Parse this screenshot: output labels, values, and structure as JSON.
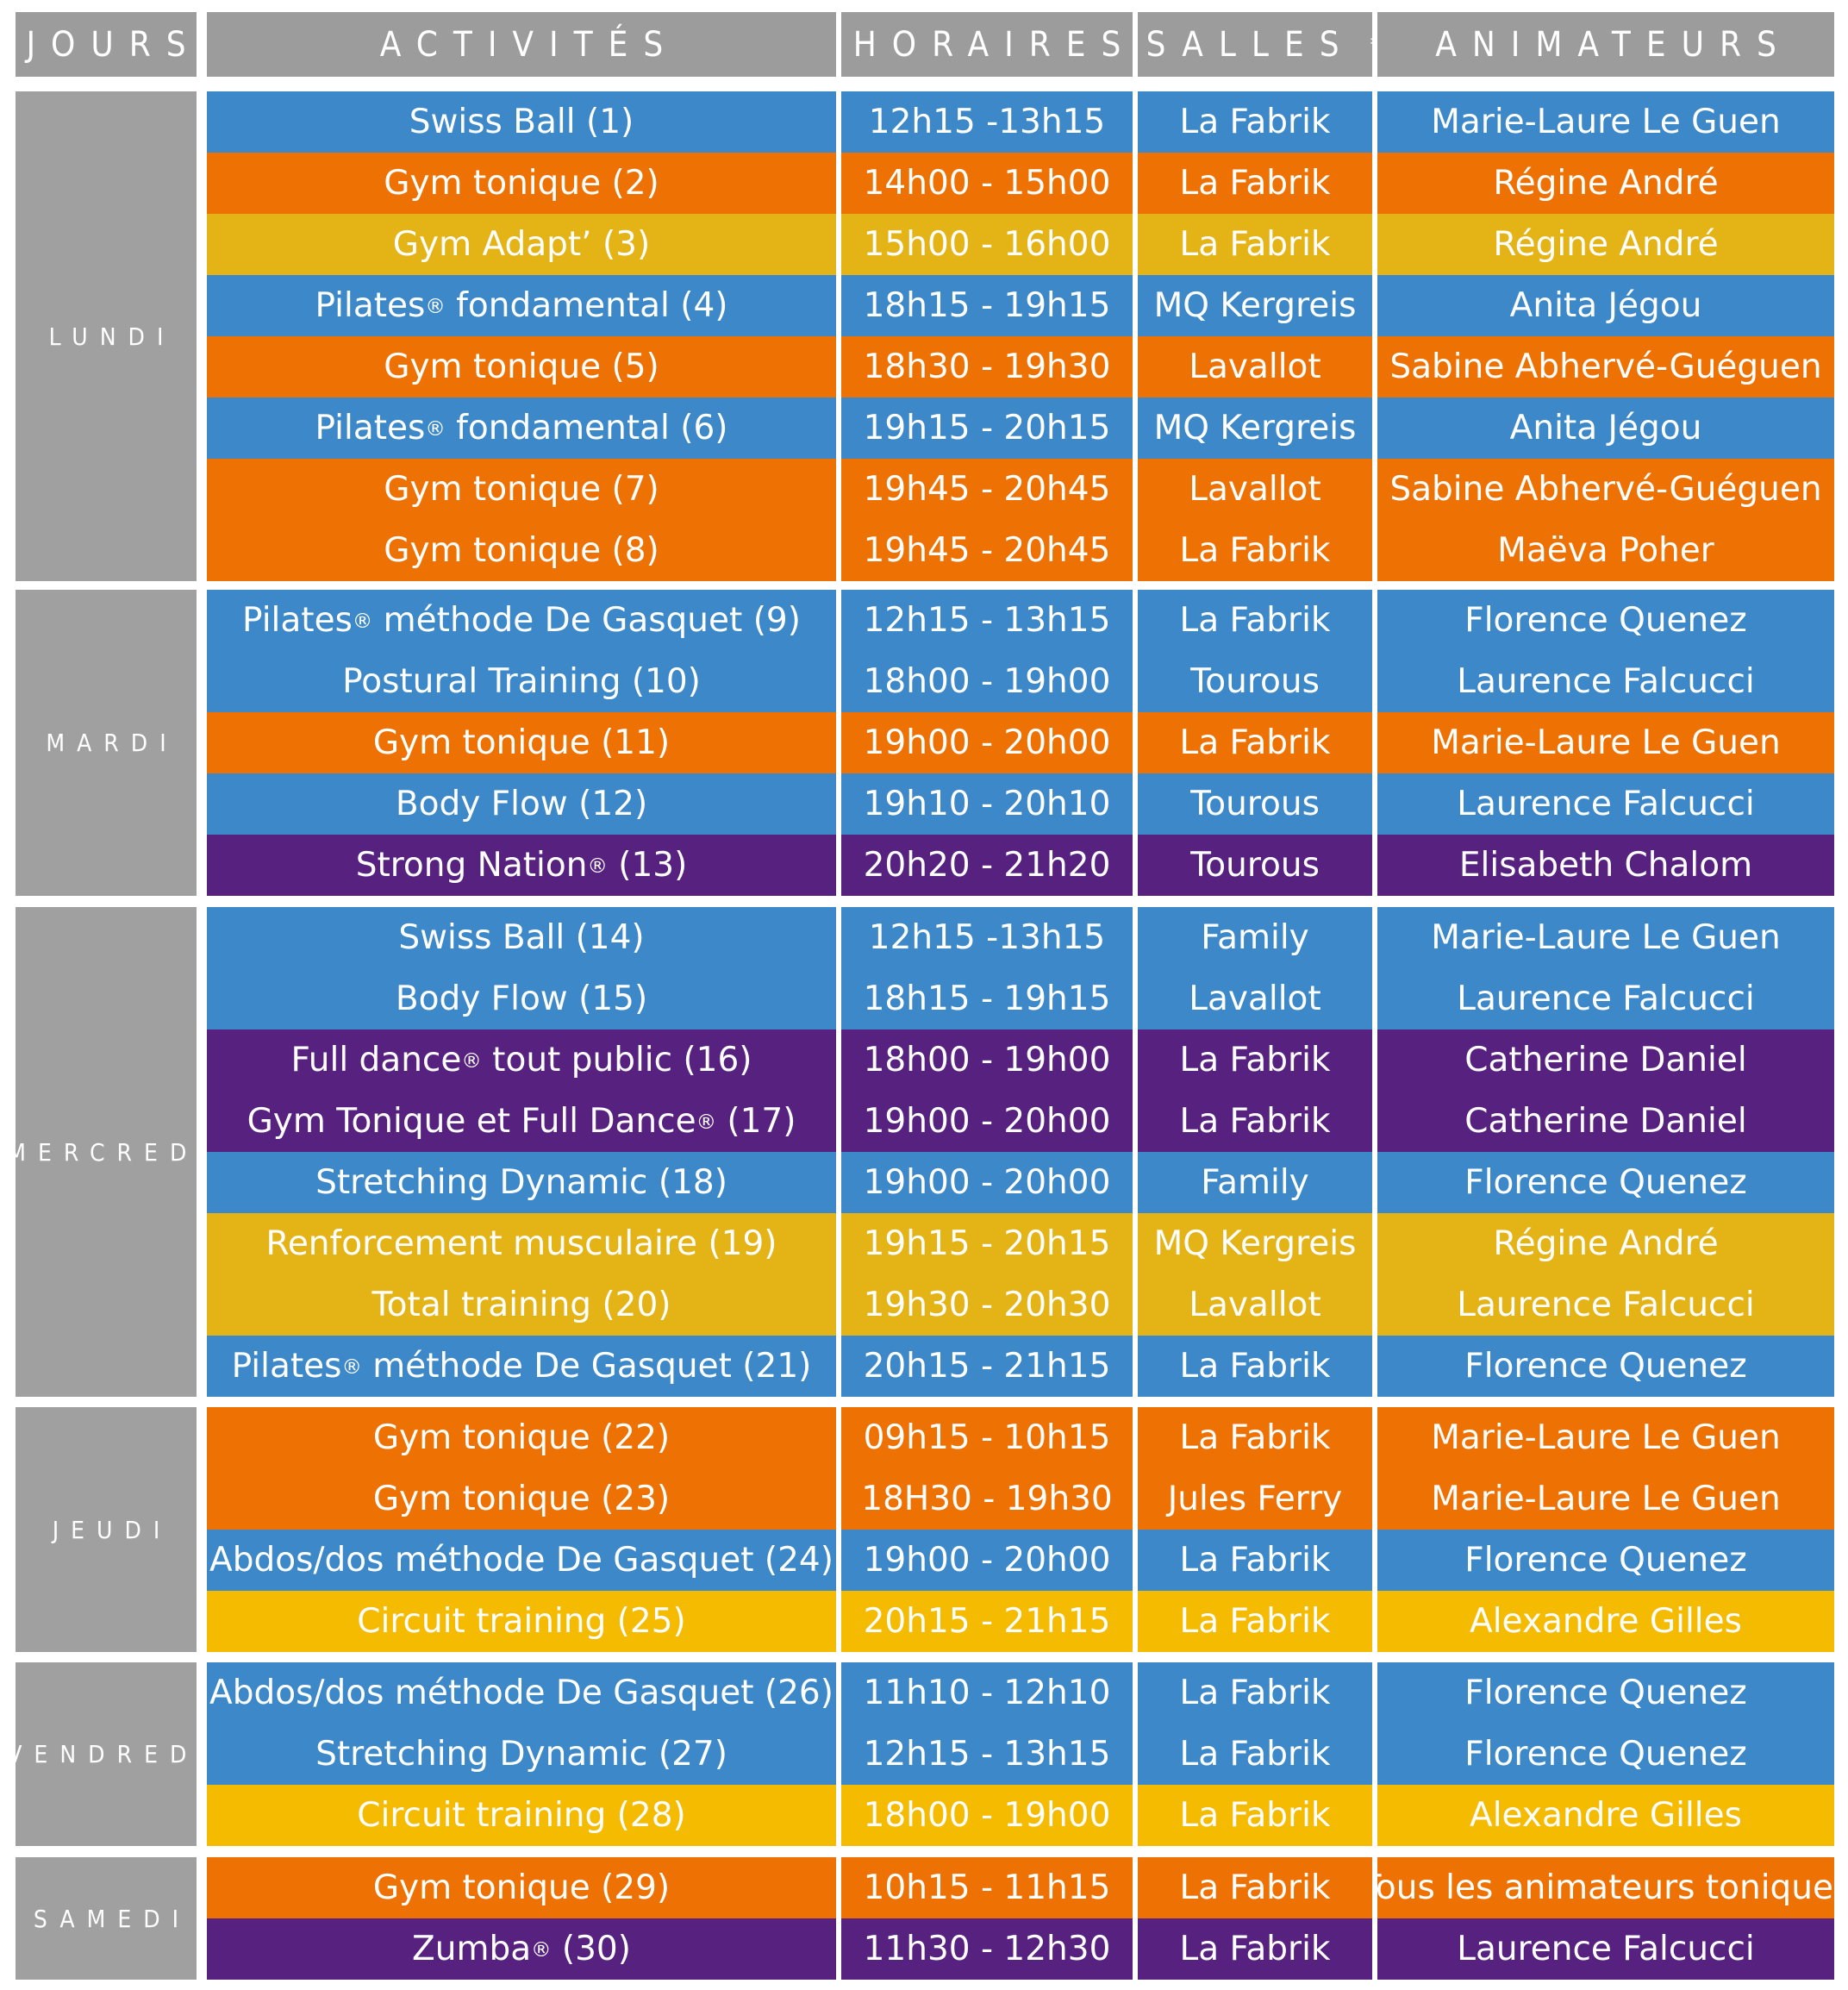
{
  "headers": {
    "jours": "JOURS",
    "activites": "ACTIVITÉS",
    "horaires": "HORAIRES",
    "salles": "SALLES",
    "salles_mark": "*",
    "animateurs": "ANIMATEURS"
  },
  "colors": {
    "blue": "#3c88c8",
    "orange": "#ee7203",
    "mustard": "#e4b417",
    "yellow": "#f5bb00",
    "purple": "#572180",
    "header_gray": "#9c9c9c",
    "day_gray": "#a0a0a0"
  },
  "days": [
    {
      "name": "LUNDI",
      "rows": [
        {
          "activity": "Swiss Ball (1)",
          "time": "12h15 -13h15",
          "room": "La Fabrik",
          "instructor": "Marie-Laure Le Guen",
          "color": "blue"
        },
        {
          "activity": "Gym tonique (2)",
          "time": "14h00 - 15h00",
          "room": "La Fabrik",
          "instructor": "Régine André",
          "color": "orange"
        },
        {
          "activity": "Gym Adapt’ (3)",
          "time": "15h00 - 16h00",
          "room": "La Fabrik",
          "instructor": "Régine André",
          "color": "mustard"
        },
        {
          "activity": "Pilates",
          "mark": "®",
          "activity_rest": " fondamental (4)",
          "time": "18h15 - 19h15",
          "room": "MQ Kergreis",
          "instructor": "Anita Jégou",
          "color": "blue"
        },
        {
          "activity": "Gym tonique (5)",
          "time": "18h30 - 19h30",
          "room": "Lavallot",
          "instructor": "Sabine Abhervé-Guéguen",
          "color": "orange"
        },
        {
          "activity": "Pilates",
          "mark": "®",
          "activity_rest": " fondamental (6)",
          "time": "19h15 - 20h15",
          "room": "MQ Kergreis",
          "instructor": "Anita Jégou",
          "color": "blue"
        },
        {
          "activity": "Gym tonique (7)",
          "time": "19h45 - 20h45",
          "room": "Lavallot",
          "instructor": "Sabine Abhervé-Guéguen",
          "color": "orange"
        },
        {
          "activity": "Gym tonique (8)",
          "time": "19h45 - 20h45",
          "room": "La Fabrik",
          "instructor": "Maëva Poher",
          "color": "orange"
        }
      ]
    },
    {
      "name": "MARDI",
      "rows": [
        {
          "activity": "Pilates",
          "mark": "®",
          "activity_rest": " méthode De Gasquet (9)",
          "time": "12h15 - 13h15",
          "room": "La Fabrik",
          "instructor": "Florence Quenez",
          "color": "blue"
        },
        {
          "activity": "Postural Training (10)",
          "time": "18h00 - 19h00",
          "room": "Tourous",
          "instructor": "Laurence Falcucci",
          "color": "blue"
        },
        {
          "activity": "Gym tonique (11)",
          "time": "19h00 - 20h00",
          "room": "La Fabrik",
          "instructor": "Marie-Laure Le Guen",
          "color": "orange"
        },
        {
          "activity": "Body Flow (12)",
          "time": "19h10 - 20h10",
          "room": "Tourous",
          "instructor": "Laurence Falcucci",
          "color": "blue"
        },
        {
          "activity": "Strong Nation",
          "mark": "®",
          "activity_rest": " (13)",
          "time": "20h20 - 21h20",
          "room": "Tourous",
          "instructor": "Elisabeth Chalom",
          "color": "purple"
        }
      ]
    },
    {
      "name": "MERCREDI",
      "rows": [
        {
          "activity": "Swiss Ball (14)",
          "time": "12h15 -13h15",
          "room": "Family",
          "instructor": "Marie-Laure Le Guen",
          "color": "blue"
        },
        {
          "activity": "Body Flow (15)",
          "time": "18h15 - 19h15",
          "room": "Lavallot",
          "instructor": "Laurence Falcucci",
          "color": "blue"
        },
        {
          "activity": "Full dance",
          "mark": "®",
          "activity_rest": " tout public (16)",
          "time": "18h00 - 19h00",
          "room": "La Fabrik",
          "instructor": "Catherine Daniel",
          "color": "purple"
        },
        {
          "activity": "Gym Tonique et Full Dance",
          "mark": "®",
          "activity_rest": " (17)",
          "time": "19h00 - 20h00",
          "room": "La Fabrik",
          "instructor": "Catherine Daniel",
          "color": "purple"
        },
        {
          "activity": "Stretching  Dynamic (18)",
          "time": "19h00 - 20h00",
          "room": "Family",
          "instructor": "Florence Quenez",
          "color": "blue"
        },
        {
          "activity": "Renforcement musculaire (19)",
          "time": "19h15 - 20h15",
          "room": "MQ Kergreis",
          "instructor": "Régine André",
          "color": "mustard"
        },
        {
          "activity": "Total training (20)",
          "time": "19h30 - 20h30",
          "room": "Lavallot",
          "instructor": "Laurence Falcucci",
          "color": "mustard"
        },
        {
          "activity": "Pilates",
          "mark": "®",
          "activity_rest": " méthode De Gasquet (21)",
          "time": "20h15 - 21h15",
          "room": "La Fabrik",
          "instructor": "Florence Quenez",
          "color": "blue"
        }
      ]
    },
    {
      "name": "JEUDI",
      "rows": [
        {
          "activity": "Gym tonique (22)",
          "time": "09h15 - 10h15",
          "room": "La Fabrik",
          "instructor": "Marie-Laure Le Guen",
          "color": "orange"
        },
        {
          "activity": "Gym tonique (23)",
          "time": "18H30 - 19h30",
          "room": "Jules Ferry",
          "instructor": "Marie-Laure Le Guen",
          "color": "orange"
        },
        {
          "activity": "Abdos/dos méthode De Gasquet (24)",
          "time": "19h00 - 20h00",
          "room": "La Fabrik",
          "instructor": "Florence Quenez",
          "color": "blue"
        },
        {
          "activity": "Circuit training (25)",
          "time": "20h15 - 21h15",
          "room": "La Fabrik",
          "instructor": "Alexandre Gilles",
          "color": "yellow"
        }
      ]
    },
    {
      "name": "VENDREDI",
      "rows": [
        {
          "activity": "Abdos/dos méthode De Gasquet (26)",
          "time": "11h10 - 12h10",
          "room": "La Fabrik",
          "instructor": "Florence Quenez",
          "color": "blue"
        },
        {
          "activity": "Stretching  Dynamic (27)",
          "time": "12h15 - 13h15",
          "room": "La Fabrik",
          "instructor": "Florence Quenez",
          "color": "blue"
        },
        {
          "activity": "Circuit training (28)",
          "time": "18h00 - 19h00",
          "room": "La Fabrik",
          "instructor": "Alexandre Gilles",
          "color": "yellow"
        }
      ]
    },
    {
      "name": "SAMEDI",
      "rows": [
        {
          "activity": "Gym tonique (29)",
          "time": "10h15 - 11h15",
          "room": "La Fabrik",
          "instructor": "Tous les animateurs toniques",
          "color": "orange"
        },
        {
          "activity": "Zumba",
          "mark": "®",
          "activity_rest": " (30)",
          "time": "11h30 - 12h30",
          "room": "La Fabrik",
          "instructor": "Laurence Falcucci",
          "color": "purple"
        }
      ]
    }
  ]
}
